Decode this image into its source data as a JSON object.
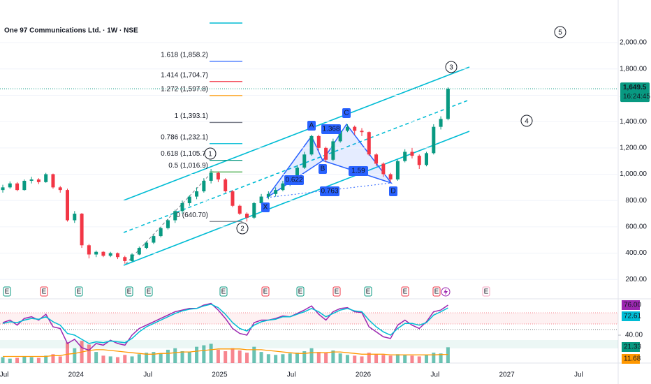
{
  "chart_data": {
    "type": "candlestick",
    "title": "One 97 Communications Ltd. · 1W · NSE",
    "categories": [
      "Jul",
      null,
      null,
      null,
      null,
      null,
      null,
      null,
      null,
      null,
      "2024",
      null,
      null,
      null,
      null,
      null,
      null,
      null,
      null,
      null,
      "Jul",
      null,
      null,
      null,
      null,
      null,
      null,
      null,
      null,
      null,
      "2025",
      null,
      null,
      null,
      null,
      null,
      null,
      null,
      null,
      null,
      "Jul",
      null,
      null,
      null,
      null,
      null,
      null,
      null,
      null,
      null,
      "2026",
      null,
      null,
      null,
      null,
      null,
      null,
      null,
      null,
      null,
      "Jul",
      null,
      null,
      null,
      null,
      null,
      null,
      null,
      null,
      null,
      "2027",
      null,
      null,
      null,
      null,
      null,
      null,
      null,
      null,
      null,
      "Jul",
      null,
      null,
      null,
      null
    ],
    "ohlc": [
      [
        880,
        920,
        860,
        900
      ],
      [
        900,
        945,
        890,
        930
      ],
      [
        930,
        940,
        870,
        880
      ],
      [
        880,
        960,
        875,
        950
      ],
      [
        950,
        980,
        930,
        960
      ],
      [
        960,
        970,
        925,
        940
      ],
      [
        940,
        1010,
        935,
        1000
      ],
      [
        1000,
        1005,
        890,
        900
      ],
      [
        900,
        910,
        860,
        880
      ],
      [
        880,
        890,
        640,
        650
      ],
      [
        650,
        720,
        630,
        700
      ],
      [
        700,
        705,
        440,
        460
      ],
      [
        460,
        470,
        360,
        390
      ],
      [
        390,
        420,
        370,
        410
      ],
      [
        410,
        415,
        370,
        380
      ],
      [
        380,
        410,
        370,
        400
      ],
      [
        400,
        405,
        355,
        370
      ],
      [
        370,
        380,
        320,
        340
      ],
      [
        340,
        400,
        335,
        390
      ],
      [
        390,
        450,
        385,
        440
      ],
      [
        440,
        490,
        430,
        480
      ],
      [
        480,
        540,
        470,
        530
      ],
      [
        530,
        600,
        520,
        590
      ],
      [
        590,
        660,
        580,
        650
      ],
      [
        650,
        730,
        630,
        720
      ],
      [
        720,
        800,
        700,
        780
      ],
      [
        780,
        840,
        760,
        830
      ],
      [
        830,
        900,
        810,
        870
      ],
      [
        870,
        970,
        860,
        950
      ],
      [
        950,
        1040,
        930,
        1010
      ],
      [
        1010,
        1020,
        940,
        960
      ],
      [
        960,
        970,
        860,
        870
      ],
      [
        870,
        880,
        750,
        760
      ],
      [
        760,
        770,
        690,
        700
      ],
      [
        700,
        710,
        640,
        670
      ],
      [
        670,
        790,
        660,
        780
      ],
      [
        780,
        850,
        770,
        830
      ],
      [
        830,
        870,
        810,
        850
      ],
      [
        850,
        900,
        830,
        880
      ],
      [
        880,
        950,
        870,
        930
      ],
      [
        930,
        980,
        910,
        960
      ],
      [
        960,
        1070,
        950,
        1050
      ],
      [
        1050,
        1170,
        1040,
        1150
      ],
      [
        1150,
        1300,
        1140,
        1290
      ],
      [
        1290,
        1300,
        1180,
        1200
      ],
      [
        1200,
        1210,
        1090,
        1110
      ],
      [
        1110,
        1270,
        1100,
        1250
      ],
      [
        1250,
        1350,
        1240,
        1330
      ],
      [
        1330,
        1380,
        1320,
        1360
      ],
      [
        1360,
        1370,
        1300,
        1330
      ],
      [
        1330,
        1350,
        1290,
        1320
      ],
      [
        1320,
        1325,
        1140,
        1150
      ],
      [
        1150,
        1160,
        1060,
        1080
      ],
      [
        1080,
        1090,
        980,
        1000
      ],
      [
        1000,
        1010,
        940,
        960
      ],
      [
        960,
        1110,
        950,
        1100
      ],
      [
        1100,
        1190,
        1090,
        1170
      ],
      [
        1170,
        1200,
        1120,
        1140
      ],
      [
        1140,
        1150,
        1040,
        1070
      ],
      [
        1070,
        1170,
        1060,
        1160
      ],
      [
        1160,
        1380,
        1150,
        1360
      ],
      [
        1360,
        1440,
        1340,
        1420
      ],
      [
        1420,
        1660,
        1410,
        1649.5
      ],
      null,
      null,
      null,
      null,
      null,
      null,
      null,
      null,
      null,
      null,
      null,
      null,
      null,
      null,
      null,
      null,
      null,
      null,
      null,
      null,
      null,
      null
    ],
    "up_color": "#089981",
    "down_color": "#f23645",
    "ylim": [
      175,
      2324
    ],
    "yticks": [
      {
        "value": 200,
        "label": "200.00"
      },
      {
        "value": 400,
        "label": "400.00"
      },
      {
        "value": 600,
        "label": "600.00"
      },
      {
        "value": 800,
        "label": "800.00"
      },
      {
        "value": 1000,
        "label": "1,000.00"
      },
      {
        "value": 1200,
        "label": "1,200.00"
      },
      {
        "value": 1400,
        "label": "1,400.00"
      },
      {
        "value": 1600,
        "label": "1,600.00"
      },
      {
        "value": 1800,
        "label": "1,800.00"
      },
      {
        "value": 2000,
        "label": "2,000.00"
      }
    ],
    "last_price": {
      "value": 1649.5,
      "label": "1,649.5"
    },
    "countdown": "16:24:45",
    "fib": [
      {
        "value": 1858.2,
        "label": "1.618 (1,858.2)",
        "color": "#2962ff"
      },
      {
        "value": 1704.7,
        "label": "1.414 (1,704.7)",
        "color": "#f23645"
      },
      {
        "value": 1597.8,
        "label": "1.272 (1,597.8)",
        "color": "#ff9800"
      },
      {
        "value": 1393.1,
        "label": "1 (1,393.1)",
        "color": "#787b86"
      },
      {
        "value": 1232.1,
        "label": "0.786 (1,232.1)",
        "color": "#00bcd4"
      },
      {
        "value": 1105.7,
        "label": "0.618 (1,105.7)",
        "color": "#089981"
      },
      {
        "value": 1016.9,
        "label": "0.5 (1,016.9)",
        "color": "#4caf50"
      },
      {
        "value": 640.7,
        "label": "0 (640.70)",
        "color": "#787b86"
      }
    ],
    "harmonic": {
      "points": [
        "X",
        "A",
        "B",
        "C",
        "D"
      ],
      "ratios": [
        "0.622",
        "1.368",
        "1.59",
        "0.763"
      ]
    },
    "waves": [
      "1",
      "2",
      "3",
      "4",
      "5"
    ],
    "events": [
      "E",
      "E",
      "E",
      "E",
      "E",
      "E",
      "E",
      "E",
      "E",
      "E",
      "E",
      "E",
      "E"
    ],
    "rsi": {
      "ylim": [
        30,
        86
      ],
      "ticks": [
        {
          "value": 40,
          "label": "40.00"
        }
      ],
      "series": [
        {
          "color": "#9c27b0",
          "label": "76.00",
          "values": [
            55,
            58,
            52,
            60,
            62,
            58,
            65,
            50,
            48,
            30,
            35,
            25,
            22,
            30,
            28,
            34,
            30,
            28,
            40,
            48,
            52,
            56,
            60,
            64,
            68,
            70,
            72,
            72,
            76,
            78,
            70,
            60,
            48,
            42,
            40,
            55,
            58,
            58,
            60,
            63,
            62,
            66,
            70,
            75,
            65,
            58,
            68,
            72,
            73,
            68,
            67,
            50,
            44,
            38,
            36,
            52,
            58,
            52,
            48,
            56,
            68,
            70,
            76,
            null,
            null,
            null,
            null,
            null,
            null,
            null,
            null,
            null,
            null,
            null,
            null,
            null,
            null,
            null,
            null,
            null,
            null,
            null,
            null,
            null,
            null
          ]
        },
        {
          "color": "#00bcd4",
          "label": "72.61",
          "values": [
            54,
            56,
            55,
            58,
            60,
            59,
            62,
            56,
            52,
            42,
            40,
            35,
            30,
            32,
            31,
            33,
            32,
            31,
            36,
            44,
            50,
            54,
            58,
            62,
            66,
            69,
            71,
            72,
            75,
            77,
            73,
            65,
            55,
            48,
            45,
            52,
            56,
            58,
            59,
            62,
            62,
            65,
            68,
            72,
            68,
            62,
            66,
            70,
            72,
            69,
            68,
            58,
            50,
            44,
            40,
            48,
            54,
            54,
            52,
            55,
            64,
            68,
            72.61,
            null,
            null,
            null,
            null,
            null,
            null,
            null,
            null,
            null,
            null,
            null,
            null,
            null,
            null,
            null,
            null,
            null,
            null,
            null,
            null,
            null,
            null
          ]
        }
      ]
    },
    "volume": {
      "ylim": [
        0,
        33
      ],
      "label": "21.33",
      "values": [
        8,
        6,
        7,
        9,
        8,
        7,
        10,
        12,
        9,
        28,
        20,
        30,
        25,
        15,
        10,
        9,
        8,
        11,
        9,
        12,
        14,
        15,
        13,
        18,
        20,
        16,
        15,
        22,
        24,
        26,
        18,
        16,
        20,
        17,
        14,
        22,
        15,
        12,
        11,
        12,
        13,
        14,
        16,
        20,
        15,
        14,
        17,
        13,
        11,
        10,
        9,
        14,
        12,
        11,
        10,
        12,
        11,
        10,
        9,
        11,
        14,
        13,
        21.33,
        null,
        null,
        null,
        null,
        null,
        null,
        null,
        null,
        null,
        null,
        null,
        null,
        null,
        null,
        null,
        null,
        null,
        null,
        null,
        null,
        null,
        null
      ],
      "ma": {
        "color": "#ff9800",
        "label": "11.68",
        "values": [
          9,
          9,
          9,
          9,
          9,
          9,
          9,
          10,
          10,
          12,
          13,
          15,
          17,
          18,
          18,
          17,
          16,
          15,
          14,
          13,
          12,
          12,
          13,
          13,
          14,
          15,
          15,
          16,
          17,
          18,
          19,
          19,
          19,
          19,
          18,
          18,
          18,
          17,
          16,
          15,
          14,
          13,
          13,
          14,
          14,
          14,
          15,
          15,
          14,
          13,
          12,
          12,
          12,
          12,
          11,
          11,
          11,
          11,
          11,
          11,
          11,
          11.5,
          11.68,
          null,
          null,
          null,
          null,
          null,
          null,
          null,
          null,
          null,
          null,
          null,
          null,
          null,
          null,
          null,
          null,
          null,
          null,
          null,
          null,
          null,
          null
        ]
      }
    }
  }
}
